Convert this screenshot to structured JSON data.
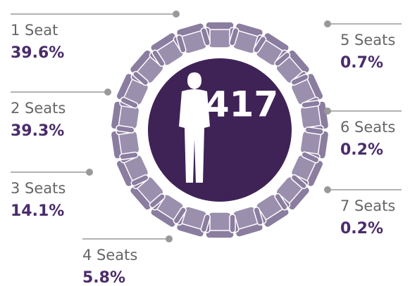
{
  "center": {
    "total": "417"
  },
  "items": [
    {
      "label": "1 Seat",
      "value": "39.6%"
    },
    {
      "label": "2 Seats",
      "value": "39.3%"
    },
    {
      "label": "3 Seats",
      "value": "14.1%"
    },
    {
      "label": "4 Seats",
      "value": "5.8%"
    },
    {
      "label": "5 Seats",
      "value": "0.7%"
    },
    {
      "label": "6 Seats",
      "value": "0.2%"
    },
    {
      "label": "7 Seats",
      "value": "0.2%"
    }
  ]
}
